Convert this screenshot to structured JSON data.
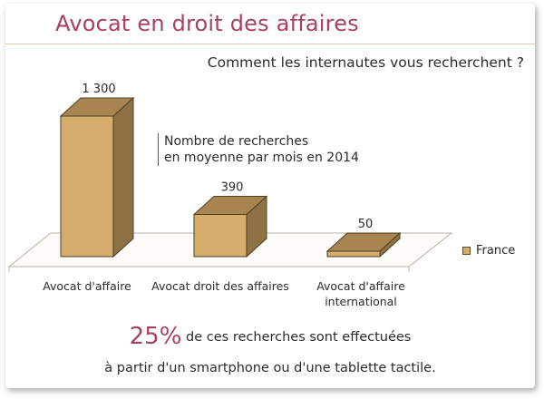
{
  "header": {
    "title": "Avocat en droit des affaires",
    "subtitle": "Comment les internautes vous recherchent ?"
  },
  "annotation": {
    "line1": "Nombre de recherches",
    "line2": "en moyenne par mois en 2014"
  },
  "chart_data": {
    "type": "bar",
    "style": "3d",
    "categories": [
      "Avocat d'affaire",
      "Avocat droit des affaires",
      "Avocat d'affaire international"
    ],
    "series": [
      {
        "name": "France",
        "values": [
          1300,
          390,
          50
        ],
        "color": "#d4ac6c"
      }
    ],
    "value_labels": [
      "1 300",
      "390",
      "50"
    ],
    "ylim": [
      0,
      1300
    ],
    "legend_position": "right",
    "grid": false,
    "colors": {
      "front": "#d4ac6c",
      "side": "#8e7244",
      "top": "#a88550",
      "edge": "#4e3f26"
    }
  },
  "footer": {
    "highlight": "25%",
    "line1_rest": "de ces recherches sont effectuées",
    "line2": "à partir d'un smartphone ou d'une tablette tactile."
  }
}
